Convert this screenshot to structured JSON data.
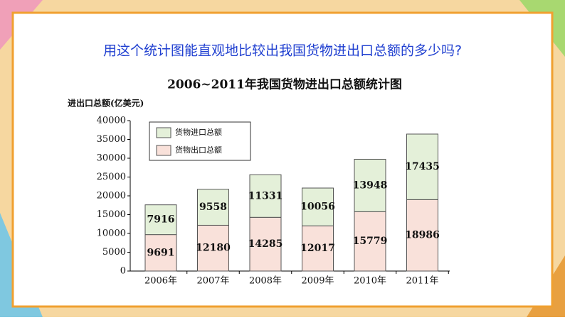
{
  "header": {
    "question": "用这个统计图能直观地比较出我国货物进出口总额的多少吗?"
  },
  "chart_data": {
    "type": "stacked-bar",
    "title": "2006~2011年我国货物进出口总额统计图",
    "y_label": "进出口总额(亿美元)",
    "categories": [
      "2006年",
      "2007年",
      "2008年",
      "2009年",
      "2010年",
      "2011年"
    ],
    "series": [
      {
        "name": "货物出口总额",
        "color": "#f9e1da",
        "values": [
          9691,
          12180,
          14285,
          12017,
          15779,
          18986
        ]
      },
      {
        "name": "货物进口总额",
        "color": "#e4f0d9",
        "values": [
          7916,
          9558,
          11331,
          10056,
          13948,
          17435
        ]
      }
    ],
    "ylim": [
      0,
      40000
    ],
    "yticks": [
      0,
      5000,
      10000,
      15000,
      20000,
      25000,
      30000,
      35000,
      40000
    ]
  }
}
